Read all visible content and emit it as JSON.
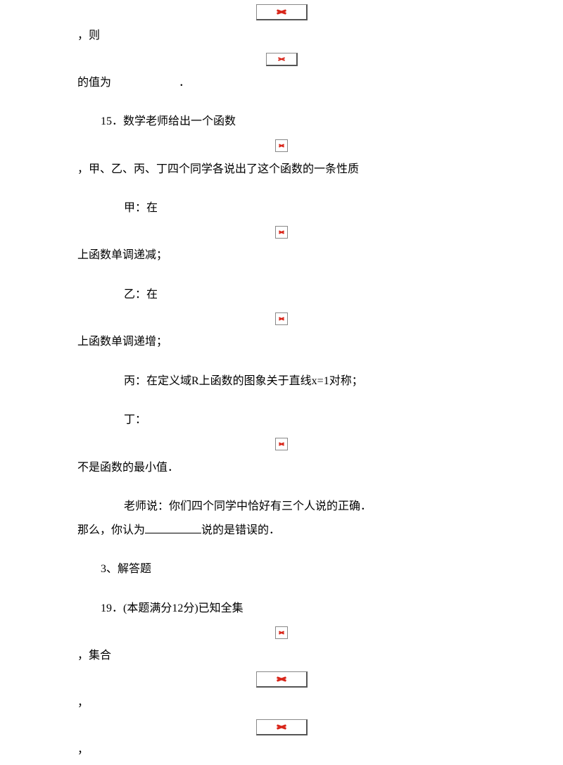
{
  "body": {
    "color_text": "#000000",
    "color_bg": "#ffffff",
    "font_family": "SimSun",
    "font_size_pt": 12,
    "broken_image_icon_color": "#d9261a",
    "broken_image_border_color": "#888888",
    "broken_image_shadow_color": "#555555"
  },
  "t1": "，则",
  "t2": "的值为　　　　　　．",
  "q15": "15．数学老师给出一个函数",
  "q15_cont": "，甲、乙、丙、丁四个同学各说出了这个函数的一条性质",
  "jia": "甲：在",
  "jia_cont": "上函数单调递减；",
  "yi": "乙：在",
  "yi_cont": "上函数单调递增；",
  "bing": "丙：在定义域R上函数的图象关于直线x=1对称；",
  "ding": "丁：",
  "ding_cont": "不是函数的最小值．",
  "teacher_pre": "老师说：你们四个同学中恰好有三个人说的正确．",
  "teacher_post_a": "那么，你认为",
  "teacher_post_b": "说的是错误的．",
  "sec3": "3、解答题",
  "q19": "19．(本题满分12分)已知全集",
  "q19_set": "，集合",
  "comma": "，"
}
